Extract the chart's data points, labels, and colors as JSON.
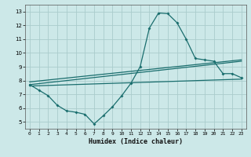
{
  "xlabel": "Humidex (Indice chaleur)",
  "background_color": "#cce8e8",
  "grid_color": "#aacccc",
  "line_color": "#1a6e6e",
  "xlim": [
    -0.5,
    23.5
  ],
  "ylim": [
    4.5,
    13.5
  ],
  "xticks": [
    0,
    1,
    2,
    3,
    4,
    5,
    6,
    7,
    8,
    9,
    10,
    11,
    12,
    13,
    14,
    15,
    16,
    17,
    18,
    19,
    20,
    21,
    22,
    23
  ],
  "yticks": [
    5,
    6,
    7,
    8,
    9,
    10,
    11,
    12,
    13
  ],
  "line1_x": [
    0,
    1,
    2,
    3,
    4,
    5,
    6,
    7,
    8,
    9,
    10,
    11,
    12,
    13,
    14,
    15,
    16,
    17,
    18,
    19,
    20,
    21,
    22,
    23
  ],
  "line1_y": [
    7.7,
    7.3,
    6.9,
    6.2,
    5.8,
    5.7,
    5.55,
    4.85,
    5.45,
    6.1,
    6.9,
    7.8,
    9.0,
    11.8,
    12.9,
    12.85,
    12.2,
    11.0,
    9.6,
    9.5,
    9.4,
    8.5,
    8.5,
    8.2
  ],
  "line2_x": [
    0,
    23
  ],
  "line2_y": [
    7.7,
    9.4
  ],
  "line3_x": [
    0,
    23
  ],
  "line3_y": [
    7.9,
    9.5
  ],
  "line4_x": [
    0,
    23
  ],
  "line4_y": [
    7.6,
    8.1
  ]
}
